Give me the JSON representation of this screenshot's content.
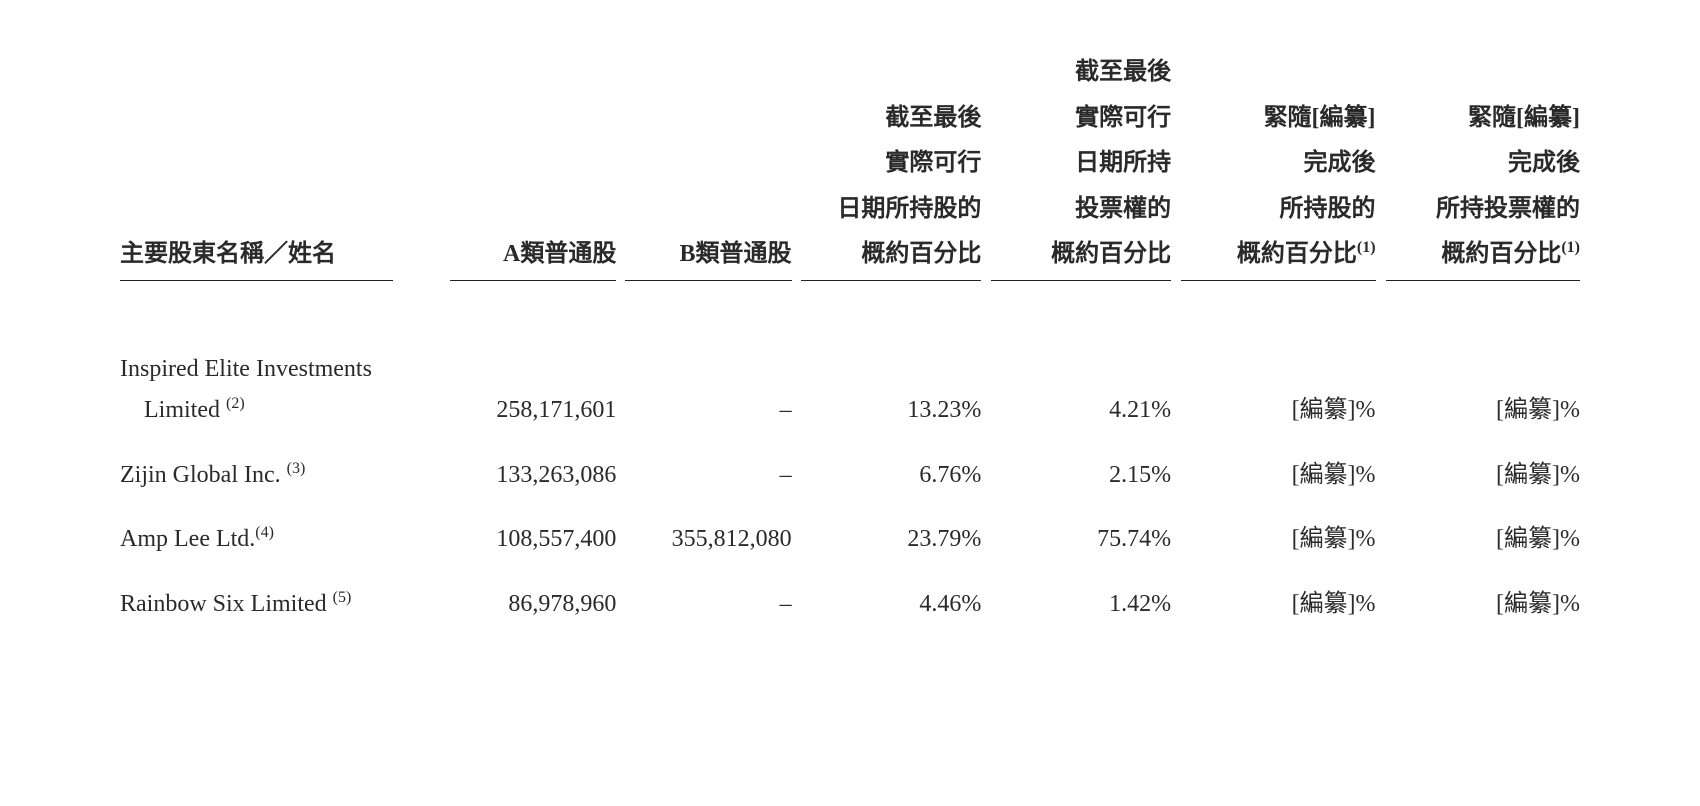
{
  "table": {
    "headers": {
      "name": "主要股東名稱／姓名",
      "col_a": "A類普通股",
      "col_b": "B類普通股",
      "col_c": "截至最後\n實際可行\n日期所持股的\n概約百分比",
      "col_d": "截至最後\n實際可行\n日期所持\n投票權的\n概約百分比",
      "col_e": "緊隨[編纂]\n完成後\n所持股的\n概約百分比",
      "col_e_sup": "(1)",
      "col_f": "緊隨[編纂]\n完成後\n所持投票權的\n概約百分比",
      "col_f_sup": "(1)"
    },
    "rows": [
      {
        "name_line1": "Inspired Elite Investments",
        "name_line2": "Limited",
        "footnote": "(2)",
        "a": "258,171,601",
        "b": "–",
        "c": "13.23%",
        "d": "4.21%",
        "e": "[編纂]%",
        "f": "[編纂]%"
      },
      {
        "name_line1": "Zijin Global Inc.",
        "name_line2": "",
        "footnote": "(3)",
        "a": "133,263,086",
        "b": "–",
        "c": "6.76%",
        "d": "2.15%",
        "e": "[編纂]%",
        "f": "[編纂]%"
      },
      {
        "name_line1": "Amp Lee Ltd.",
        "name_line2": "",
        "footnote": "(4)",
        "a": "108,557,400",
        "b": "355,812,080",
        "c": "23.79%",
        "d": "75.74%",
        "e": "[編纂]%",
        "f": "[編纂]%"
      },
      {
        "name_line1": "Rainbow Six Limited",
        "name_line2": "",
        "footnote": "(5)",
        "a": "86,978,960",
        "b": "–",
        "c": "4.46%",
        "d": "1.42%",
        "e": "[編纂]%",
        "f": "[編纂]%"
      }
    ]
  },
  "style": {
    "background_color": "#ffffff",
    "text_color": "#2a2a2a",
    "header_fontsize": 24,
    "body_fontsize": 24,
    "footnote_fontsize": 16
  }
}
